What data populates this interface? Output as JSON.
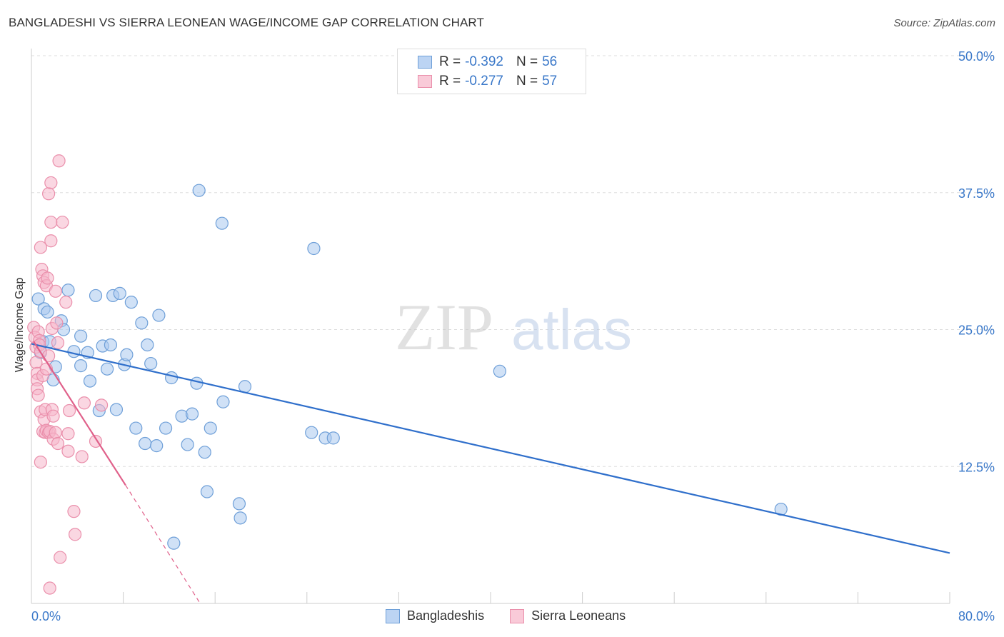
{
  "header": {
    "title": "BANGLADESHI VS SIERRA LEONEAN WAGE/INCOME GAP CORRELATION CHART",
    "source": "Source: ZipAtlas.com"
  },
  "legend": {
    "series": [
      {
        "r_label": "R =",
        "r_value": "-0.392",
        "n_label": "N =",
        "n_value": "56"
      },
      {
        "r_label": "R =",
        "r_value": "-0.277",
        "n_label": "N =",
        "n_value": "57"
      }
    ]
  },
  "bottom_legend": [
    "Bangladeshis",
    "Sierra Leoneans"
  ],
  "watermark": {
    "zip": "ZIP",
    "atlas": "atlas"
  },
  "colors": {
    "blue_fill": "#a9c8ef",
    "blue_stroke": "#6e9fd8",
    "blue_line": "#2f6fcb",
    "pink_fill": "#f5b7ca",
    "pink_stroke": "#ea8fab",
    "pink_line": "#e0608a",
    "axis_label": "#3a78c9",
    "grid": "#dddddd"
  },
  "chart_data": {
    "type": "scatter",
    "title": "BANGLADESHI VS SIERRA LEONEAN WAGE/INCOME GAP CORRELATION CHART",
    "xlabel": "",
    "ylabel": "Wage/Income Gap",
    "xlim": [
      0,
      80
    ],
    "ylim": [
      0,
      50
    ],
    "x_tick_labels": [
      "0.0%",
      "80.0%"
    ],
    "y_ticks": [
      12.5,
      25.0,
      37.5,
      50.0
    ],
    "y_tick_labels": [
      "12.5%",
      "25.0%",
      "37.5%",
      "50.0%"
    ],
    "series": [
      {
        "name": "Bangladeshis",
        "points": [
          [
            0.6,
            27.8
          ],
          [
            1.0,
            23.9
          ],
          [
            0.8,
            22.9
          ],
          [
            1.1,
            26.9
          ],
          [
            1.4,
            26.6
          ],
          [
            1.6,
            23.9
          ],
          [
            1.9,
            20.4
          ],
          [
            2.1,
            21.6
          ],
          [
            2.6,
            25.8
          ],
          [
            2.8,
            25.0
          ],
          [
            3.2,
            28.6
          ],
          [
            3.7,
            23.0
          ],
          [
            4.3,
            24.4
          ],
          [
            4.3,
            21.7
          ],
          [
            4.9,
            22.9
          ],
          [
            5.1,
            20.3
          ],
          [
            5.6,
            28.1
          ],
          [
            5.9,
            17.6
          ],
          [
            6.2,
            23.5
          ],
          [
            6.6,
            21.4
          ],
          [
            6.9,
            23.6
          ],
          [
            7.1,
            28.1
          ],
          [
            7.4,
            17.7
          ],
          [
            7.7,
            28.3
          ],
          [
            8.1,
            21.8
          ],
          [
            8.3,
            22.7
          ],
          [
            8.7,
            27.5
          ],
          [
            9.1,
            16.0
          ],
          [
            9.6,
            25.6
          ],
          [
            9.9,
            14.6
          ],
          [
            10.1,
            23.6
          ],
          [
            10.4,
            21.9
          ],
          [
            10.9,
            14.4
          ],
          [
            11.1,
            26.3
          ],
          [
            11.7,
            16.0
          ],
          [
            12.2,
            20.6
          ],
          [
            12.4,
            5.5
          ],
          [
            13.1,
            17.1
          ],
          [
            13.6,
            14.5
          ],
          [
            14.0,
            17.3
          ],
          [
            14.4,
            20.1
          ],
          [
            14.6,
            37.7
          ],
          [
            15.1,
            13.8
          ],
          [
            15.3,
            10.2
          ],
          [
            15.6,
            16.0
          ],
          [
            16.6,
            34.7
          ],
          [
            16.7,
            18.4
          ],
          [
            18.1,
            9.1
          ],
          [
            18.2,
            7.8
          ],
          [
            18.6,
            19.8
          ],
          [
            24.6,
            32.4
          ],
          [
            24.4,
            15.6
          ],
          [
            25.6,
            15.1
          ],
          [
            26.3,
            15.1
          ],
          [
            40.8,
            21.2
          ],
          [
            65.3,
            8.6
          ]
        ]
      },
      {
        "name": "Sierra Leoneans",
        "points": [
          [
            0.2,
            25.2
          ],
          [
            0.3,
            24.3
          ],
          [
            0.4,
            23.4
          ],
          [
            0.4,
            22.0
          ],
          [
            0.5,
            21.0
          ],
          [
            0.5,
            20.4
          ],
          [
            0.5,
            19.6
          ],
          [
            0.6,
            19.0
          ],
          [
            0.6,
            24.8
          ],
          [
            0.7,
            24.0
          ],
          [
            0.7,
            23.6
          ],
          [
            0.8,
            23.0
          ],
          [
            0.8,
            32.5
          ],
          [
            0.8,
            17.5
          ],
          [
            0.8,
            12.9
          ],
          [
            0.9,
            30.5
          ],
          [
            1.0,
            29.9
          ],
          [
            1.0,
            20.8
          ],
          [
            1.0,
            15.7
          ],
          [
            1.1,
            16.8
          ],
          [
            1.1,
            29.3
          ],
          [
            1.2,
            15.6
          ],
          [
            1.2,
            17.7
          ],
          [
            1.3,
            15.8
          ],
          [
            1.3,
            21.4
          ],
          [
            1.3,
            29.0
          ],
          [
            1.4,
            29.7
          ],
          [
            1.5,
            15.6
          ],
          [
            1.5,
            37.4
          ],
          [
            1.5,
            22.6
          ],
          [
            1.6,
            15.7
          ],
          [
            1.6,
            1.4
          ],
          [
            1.7,
            38.4
          ],
          [
            1.7,
            33.1
          ],
          [
            1.7,
            34.8
          ],
          [
            1.8,
            17.7
          ],
          [
            1.8,
            25.1
          ],
          [
            1.9,
            15.0
          ],
          [
            1.9,
            17.1
          ],
          [
            2.1,
            15.6
          ],
          [
            2.1,
            28.5
          ],
          [
            2.2,
            25.6
          ],
          [
            2.3,
            14.6
          ],
          [
            2.3,
            23.8
          ],
          [
            2.4,
            40.4
          ],
          [
            2.5,
            4.2
          ],
          [
            2.7,
            34.8
          ],
          [
            3.0,
            27.5
          ],
          [
            3.2,
            13.9
          ],
          [
            3.2,
            15.5
          ],
          [
            3.3,
            17.6
          ],
          [
            3.7,
            8.4
          ],
          [
            3.8,
            6.3
          ],
          [
            4.4,
            13.4
          ],
          [
            4.6,
            18.3
          ],
          [
            5.6,
            14.8
          ],
          [
            6.1,
            18.1
          ]
        ]
      }
    ],
    "trendlines": [
      {
        "series": "Bangladeshis",
        "x": [
          0,
          80
        ],
        "y": [
          23.7,
          4.6
        ],
        "style": "solid"
      },
      {
        "series": "Sierra Leoneans",
        "x": [
          0.2,
          8.2
        ],
        "y": [
          23.9,
          10.8
        ],
        "style": "solid"
      },
      {
        "series": "Sierra Leoneans",
        "x": [
          8.2,
          14.7
        ],
        "y": [
          10.8,
          0.0
        ],
        "style": "dashed"
      }
    ]
  }
}
